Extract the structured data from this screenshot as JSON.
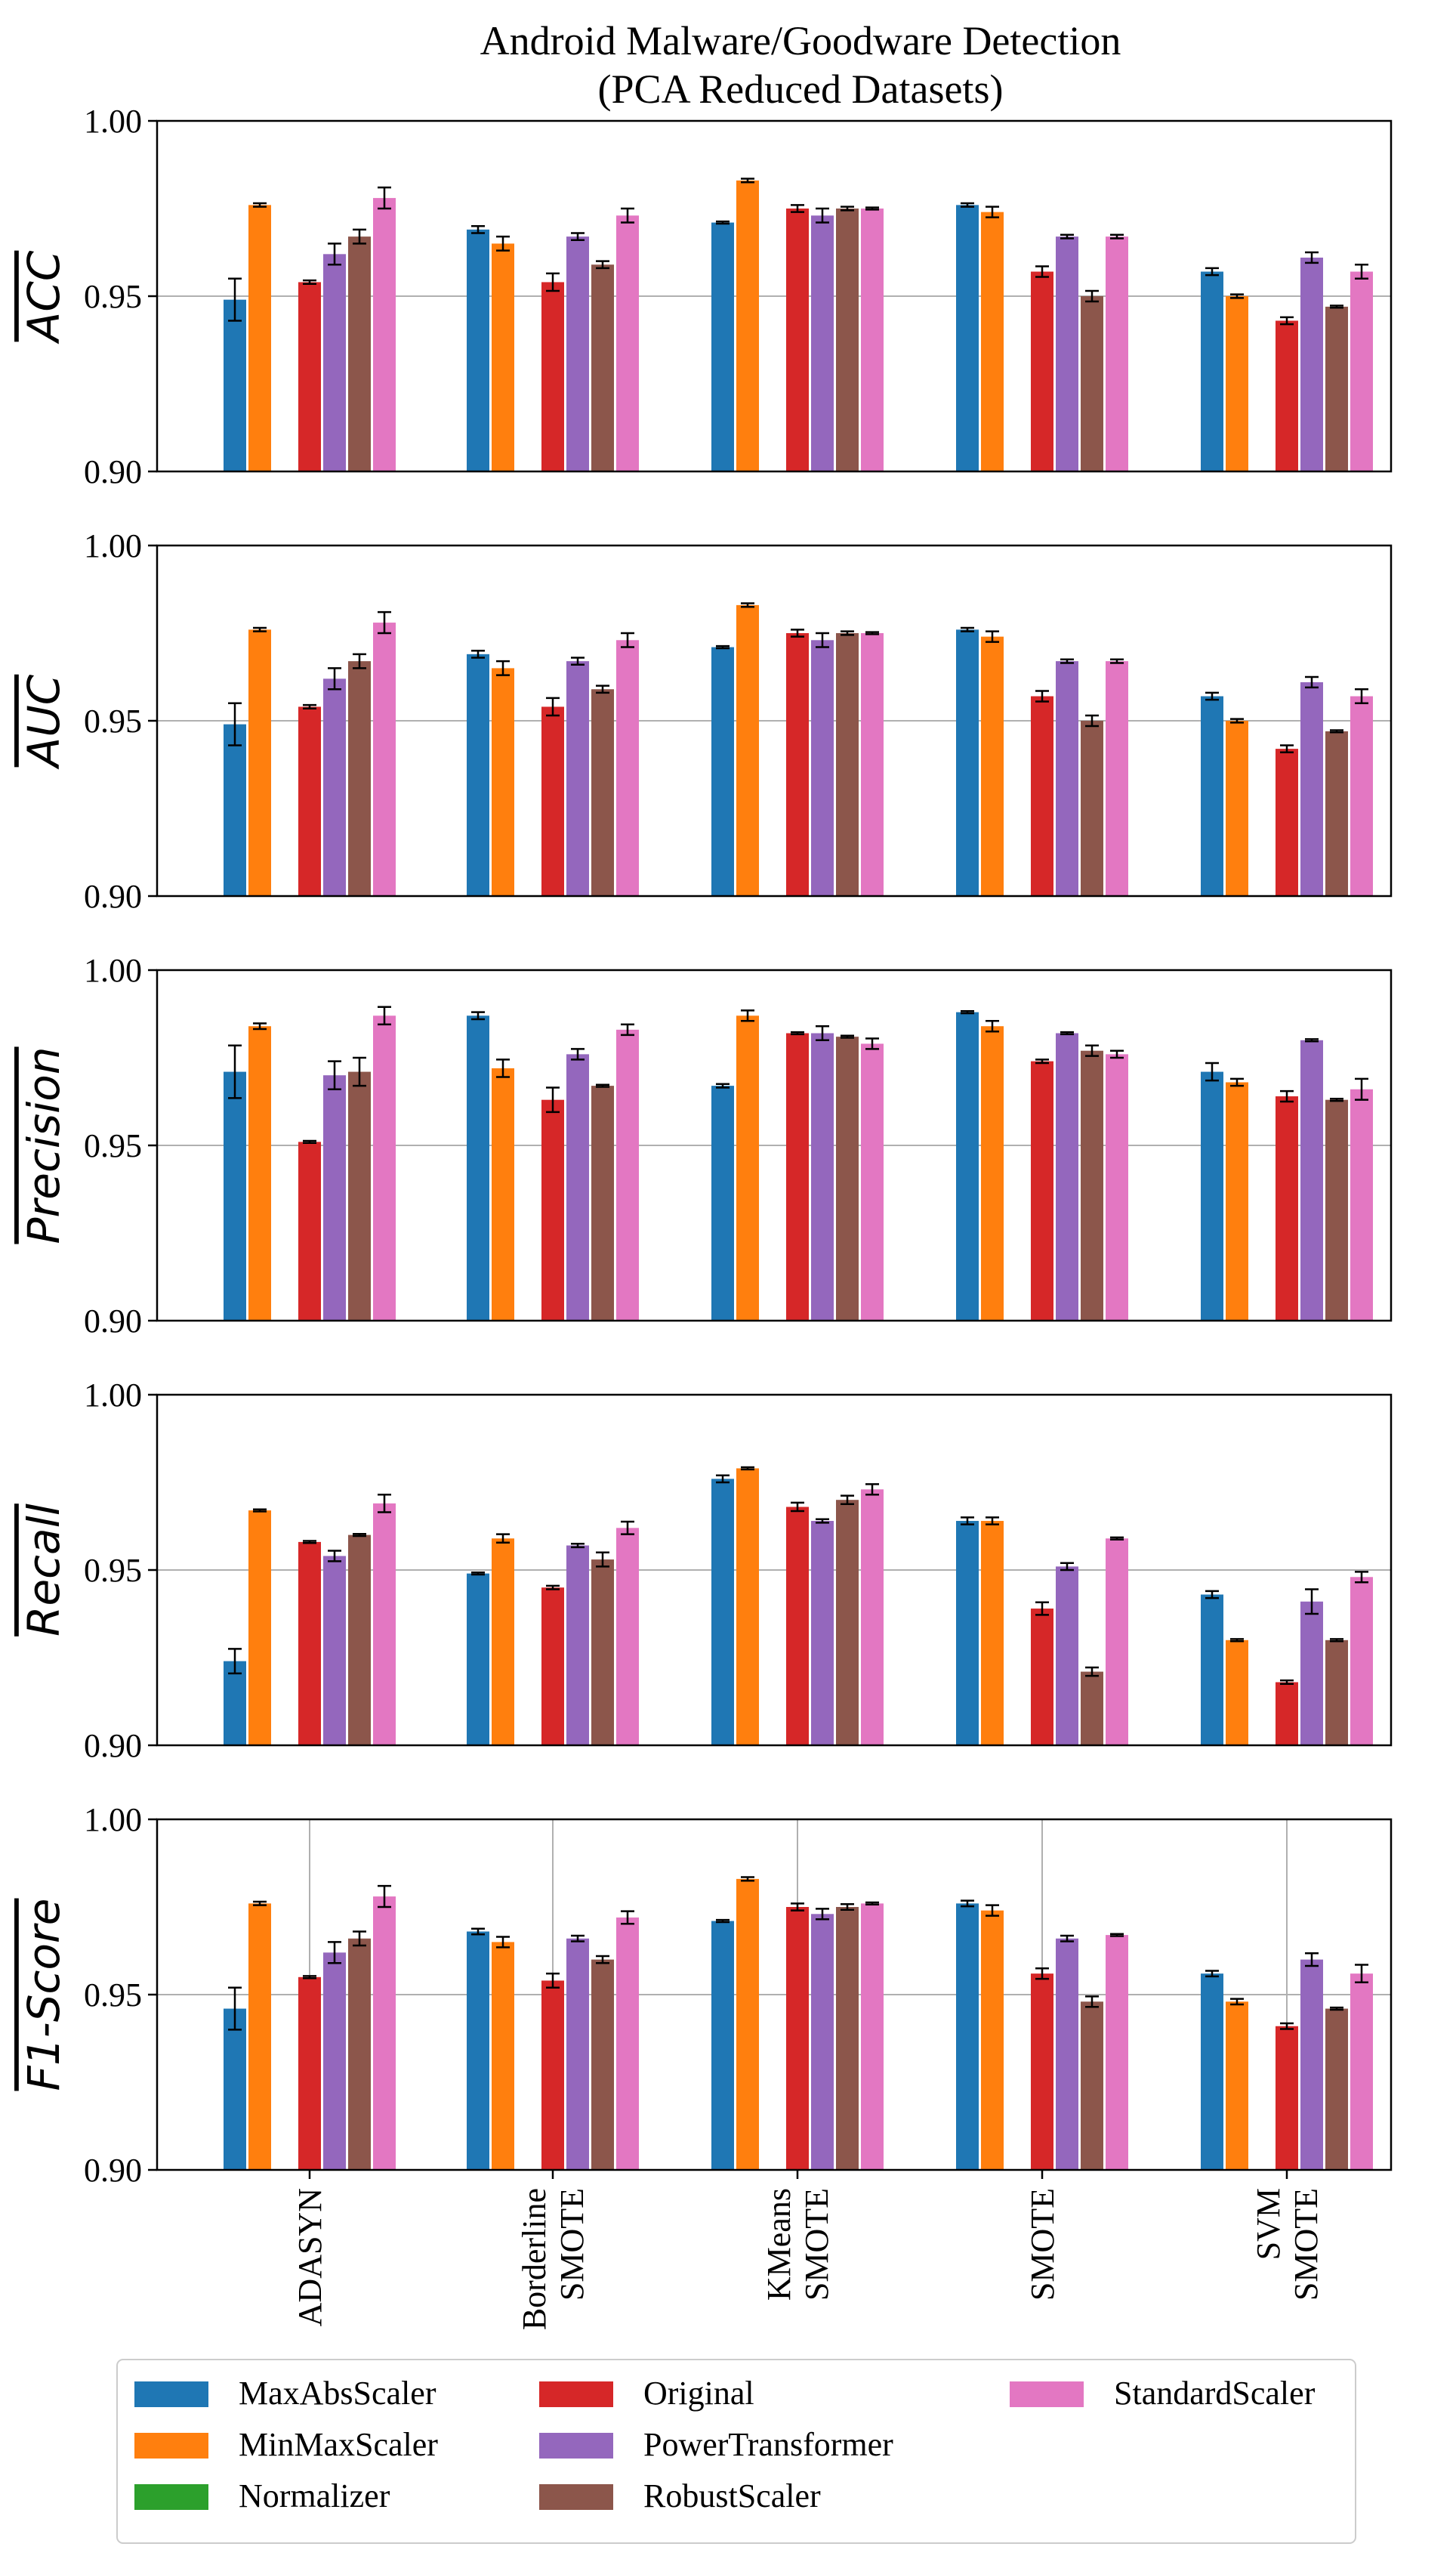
{
  "chart_data": {
    "type": "bar",
    "title_lines": [
      "Android Malware/Goodware Detection",
      "(PCA Reduced Datasets)"
    ],
    "categories": [
      [
        "ADASYN"
      ],
      [
        "Borderline",
        "SMOTE"
      ],
      [
        "KMeans",
        "SMOTE"
      ],
      [
        "SMOTE"
      ],
      [
        "SVM",
        "SMOTE"
      ]
    ],
    "series": [
      {
        "name": "MaxAbsScaler",
        "color": "#1f77b4"
      },
      {
        "name": "MinMaxScaler",
        "color": "#ff7f0e"
      },
      {
        "name": "Normalizer",
        "color": "#2ca02c"
      },
      {
        "name": "Original",
        "color": "#d62728"
      },
      {
        "name": "PowerTransformer",
        "color": "#9467bd"
      },
      {
        "name": "RobustScaler",
        "color": "#8c564b"
      },
      {
        "name": "StandardScaler",
        "color": "#e377c2"
      }
    ],
    "ylim": [
      0.9,
      1.0
    ],
    "yticks": [
      "0.90",
      "0.95",
      "1.00"
    ],
    "panels": [
      {
        "ylabel": "ACC",
        "values": [
          [
            0.949,
            0.976,
            null,
            0.954,
            0.962,
            0.967,
            0.978
          ],
          [
            0.969,
            0.965,
            null,
            0.954,
            0.967,
            0.959,
            0.973
          ],
          [
            0.971,
            0.983,
            null,
            0.975,
            0.973,
            0.975,
            0.975
          ],
          [
            0.976,
            0.974,
            null,
            0.957,
            0.967,
            0.95,
            0.967
          ],
          [
            0.957,
            0.95,
            null,
            0.943,
            0.961,
            0.947,
            0.957
          ]
        ],
        "errors": [
          [
            0.006,
            0.0005,
            null,
            0.0005,
            0.003,
            0.002,
            0.003
          ],
          [
            0.001,
            0.002,
            null,
            0.0025,
            0.001,
            0.001,
            0.002
          ],
          [
            0.0003,
            0.0005,
            null,
            0.001,
            0.002,
            0.0005,
            0.0003
          ],
          [
            0.0005,
            0.0015,
            null,
            0.0015,
            0.0005,
            0.0015,
            0.0005
          ],
          [
            0.001,
            0.0005,
            null,
            0.001,
            0.0015,
            0.0003,
            0.002
          ]
        ]
      },
      {
        "ylabel": "AUC",
        "values": [
          [
            0.949,
            0.976,
            null,
            0.954,
            0.962,
            0.967,
            0.978
          ],
          [
            0.969,
            0.965,
            null,
            0.954,
            0.967,
            0.959,
            0.973
          ],
          [
            0.971,
            0.983,
            null,
            0.975,
            0.973,
            0.975,
            0.975
          ],
          [
            0.976,
            0.974,
            null,
            0.957,
            0.967,
            0.95,
            0.967
          ],
          [
            0.957,
            0.95,
            null,
            0.942,
            0.961,
            0.947,
            0.957
          ]
        ],
        "errors": [
          [
            0.006,
            0.0005,
            null,
            0.0005,
            0.003,
            0.002,
            0.003
          ],
          [
            0.001,
            0.002,
            null,
            0.0025,
            0.001,
            0.001,
            0.002
          ],
          [
            0.0003,
            0.0005,
            null,
            0.001,
            0.002,
            0.0005,
            0.0003
          ],
          [
            0.0005,
            0.0015,
            null,
            0.0015,
            0.0005,
            0.0015,
            0.0005
          ],
          [
            0.001,
            0.0005,
            null,
            0.001,
            0.0015,
            0.0003,
            0.002
          ]
        ]
      },
      {
        "ylabel": "Precision",
        "values": [
          [
            0.971,
            0.984,
            null,
            0.951,
            0.97,
            0.971,
            0.987
          ],
          [
            0.987,
            0.972,
            null,
            0.963,
            0.976,
            0.967,
            0.983
          ],
          [
            0.967,
            0.987,
            null,
            0.982,
            0.982,
            0.981,
            0.979
          ],
          [
            0.988,
            0.984,
            null,
            0.974,
            0.982,
            0.977,
            0.976
          ],
          [
            0.971,
            0.968,
            null,
            0.964,
            0.98,
            0.963,
            0.966
          ]
        ],
        "errors": [
          [
            0.0075,
            0.0008,
            null,
            0.0003,
            0.004,
            0.004,
            0.0025
          ],
          [
            0.001,
            0.0025,
            null,
            0.0035,
            0.0015,
            0.0003,
            0.0015
          ],
          [
            0.0005,
            0.0015,
            null,
            0.0003,
            0.002,
            0.0003,
            0.0015
          ],
          [
            0.0003,
            0.0015,
            null,
            0.0005,
            0.0003,
            0.0015,
            0.001
          ],
          [
            0.0025,
            0.001,
            null,
            0.0015,
            0.0003,
            0.0003,
            0.003
          ]
        ]
      },
      {
        "ylabel": "Recall",
        "values": [
          [
            0.924,
            0.967,
            null,
            0.958,
            0.954,
            0.96,
            0.969
          ],
          [
            0.949,
            0.959,
            null,
            0.945,
            0.957,
            0.953,
            0.962
          ],
          [
            0.976,
            0.979,
            null,
            0.968,
            0.964,
            0.97,
            0.973
          ],
          [
            0.964,
            0.964,
            null,
            0.939,
            0.951,
            0.921,
            0.959
          ],
          [
            0.943,
            0.93,
            null,
            0.918,
            0.941,
            0.93,
            0.948
          ]
        ],
        "errors": [
          [
            0.0035,
            0.0003,
            null,
            0.0003,
            0.0015,
            0.0003,
            0.0025
          ],
          [
            0.0003,
            0.0012,
            null,
            0.0005,
            0.0005,
            0.002,
            0.0018
          ],
          [
            0.001,
            0.0003,
            null,
            0.0012,
            0.0005,
            0.0012,
            0.0015
          ],
          [
            0.001,
            0.001,
            null,
            0.0018,
            0.001,
            0.0012,
            0.0003
          ],
          [
            0.001,
            0.0003,
            null,
            0.0005,
            0.0035,
            0.0003,
            0.0015
          ]
        ]
      },
      {
        "ylabel": "F1-Score",
        "values": [
          [
            0.946,
            0.976,
            null,
            0.955,
            0.962,
            0.966,
            0.978
          ],
          [
            0.968,
            0.965,
            null,
            0.954,
            0.966,
            0.96,
            0.972
          ],
          [
            0.971,
            0.983,
            null,
            0.975,
            0.973,
            0.975,
            0.976
          ],
          [
            0.976,
            0.974,
            null,
            0.956,
            0.966,
            0.948,
            0.967
          ],
          [
            0.956,
            0.948,
            null,
            0.941,
            0.96,
            0.946,
            0.956
          ]
        ],
        "errors": [
          [
            0.006,
            0.0005,
            null,
            0.0003,
            0.003,
            0.002,
            0.003
          ],
          [
            0.0008,
            0.0015,
            null,
            0.002,
            0.0008,
            0.001,
            0.0018
          ],
          [
            0.0003,
            0.0005,
            null,
            0.001,
            0.0015,
            0.0008,
            0.0003
          ],
          [
            0.0008,
            0.0015,
            null,
            0.0015,
            0.0008,
            0.0015,
            0.0003
          ],
          [
            0.0008,
            0.0008,
            null,
            0.0008,
            0.0018,
            0.0003,
            0.0025
          ]
        ]
      }
    ]
  }
}
